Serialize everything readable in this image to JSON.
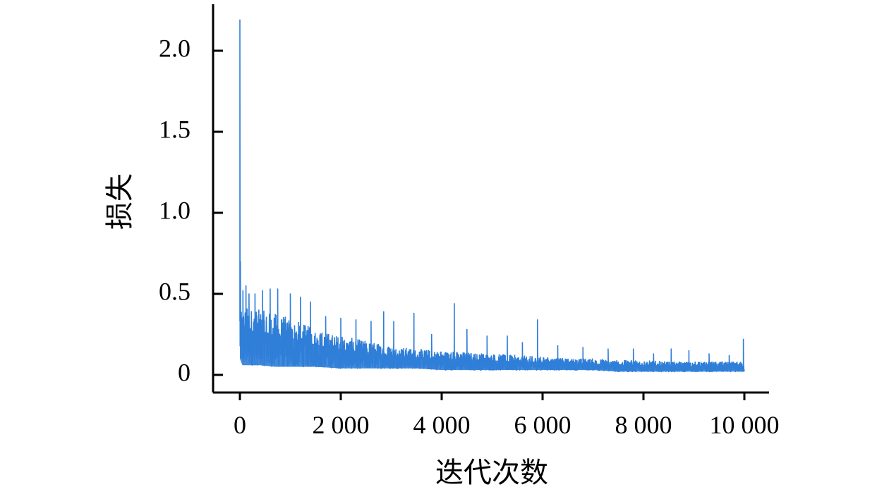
{
  "chart_data": {
    "type": "line",
    "title": "",
    "xlabel": "迭代次数",
    "ylabel": "损失",
    "xlim": [
      0,
      10000
    ],
    "ylim": [
      0,
      2.2
    ],
    "x_ticks": [
      0,
      2000,
      4000,
      6000,
      8000,
      10000
    ],
    "x_tick_labels": [
      "0",
      "2 000",
      "4 000",
      "6 000",
      "8 000",
      "10 000"
    ],
    "y_ticks": [
      0,
      0.5,
      1.0,
      1.5,
      2.0
    ],
    "y_tick_labels": [
      "0",
      "0.5",
      "1.0",
      "1.5",
      "2.0"
    ],
    "grid": false,
    "legend": "none",
    "series": [
      {
        "color": "#2f7ed8",
        "envelope": {
          "x": [
            0,
            20,
            50,
            100,
            200,
            400,
            700,
            1000,
            1500,
            2000,
            2500,
            3000,
            3500,
            4000,
            4500,
            5000,
            5500,
            6000,
            6500,
            7000,
            7500,
            8000,
            8500,
            9000,
            9500,
            10000
          ],
          "upper": [
            0.5,
            0.45,
            0.42,
            0.42,
            0.42,
            0.4,
            0.38,
            0.35,
            0.28,
            0.24,
            0.21,
            0.18,
            0.16,
            0.15,
            0.14,
            0.13,
            0.12,
            0.11,
            0.1,
            0.1,
            0.09,
            0.09,
            0.08,
            0.08,
            0.08,
            0.08
          ],
          "lower": [
            0.1,
            0.07,
            0.06,
            0.06,
            0.06,
            0.06,
            0.05,
            0.05,
            0.05,
            0.04,
            0.04,
            0.04,
            0.04,
            0.03,
            0.03,
            0.03,
            0.03,
            0.03,
            0.03,
            0.03,
            0.02,
            0.02,
            0.02,
            0.02,
            0.02,
            0.02
          ]
        },
        "spikes": [
          {
            "x": 0,
            "y": 2.19
          },
          {
            "x": 10,
            "y": 0.7
          },
          {
            "x": 60,
            "y": 0.52
          },
          {
            "x": 120,
            "y": 0.55
          },
          {
            "x": 180,
            "y": 0.5
          },
          {
            "x": 300,
            "y": 0.5
          },
          {
            "x": 450,
            "y": 0.52
          },
          {
            "x": 600,
            "y": 0.53
          },
          {
            "x": 750,
            "y": 0.53
          },
          {
            "x": 1000,
            "y": 0.5
          },
          {
            "x": 1200,
            "y": 0.48
          },
          {
            "x": 1400,
            "y": 0.45
          },
          {
            "x": 1700,
            "y": 0.36
          },
          {
            "x": 2000,
            "y": 0.35
          },
          {
            "x": 2300,
            "y": 0.34
          },
          {
            "x": 2600,
            "y": 0.33
          },
          {
            "x": 2850,
            "y": 0.39
          },
          {
            "x": 3050,
            "y": 0.33
          },
          {
            "x": 3450,
            "y": 0.38
          },
          {
            "x": 3800,
            "y": 0.25
          },
          {
            "x": 4250,
            "y": 0.44
          },
          {
            "x": 4500,
            "y": 0.28
          },
          {
            "x": 4900,
            "y": 0.24
          },
          {
            "x": 5300,
            "y": 0.24
          },
          {
            "x": 5600,
            "y": 0.2
          },
          {
            "x": 5900,
            "y": 0.34
          },
          {
            "x": 6300,
            "y": 0.18
          },
          {
            "x": 6800,
            "y": 0.17
          },
          {
            "x": 7300,
            "y": 0.16
          },
          {
            "x": 7800,
            "y": 0.16
          },
          {
            "x": 8200,
            "y": 0.13
          },
          {
            "x": 8550,
            "y": 0.16
          },
          {
            "x": 8900,
            "y": 0.15
          },
          {
            "x": 9300,
            "y": 0.13
          },
          {
            "x": 9700,
            "y": 0.12
          },
          {
            "x": 9980,
            "y": 0.22
          }
        ]
      }
    ]
  }
}
